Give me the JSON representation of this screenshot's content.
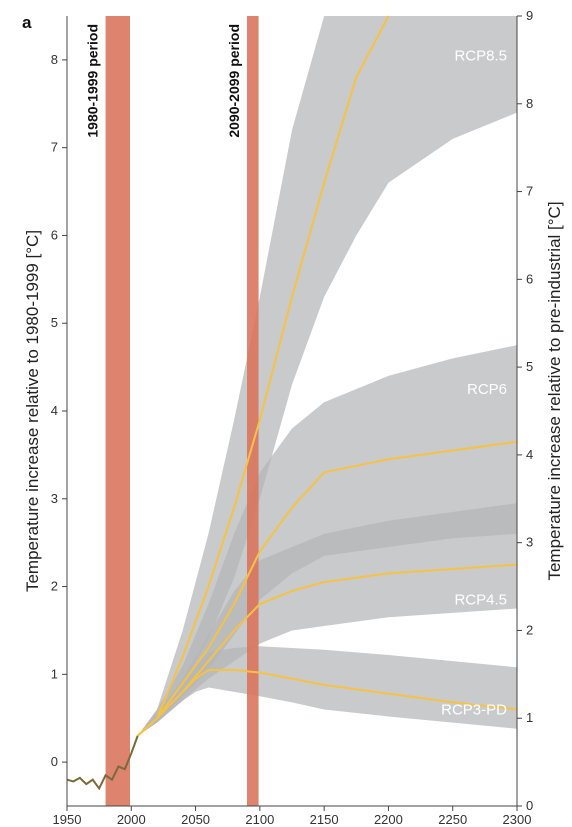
{
  "chart_data": {
    "type": "area",
    "panel_label": "a",
    "ylabel_left": "Temperature increase relative to 1980-1999 [°C]",
    "ylabel_right": "Temperature increase relative to pre-industrial [°C]",
    "xlim": [
      1950,
      2300
    ],
    "ylim_left": [
      -0.5,
      8.5
    ],
    "ylim_right": [
      0,
      9
    ],
    "x_ticks": [
      1950,
      2000,
      2050,
      2100,
      2150,
      2200,
      2250,
      2300
    ],
    "y_ticks_left": [
      0,
      1,
      2,
      3,
      4,
      5,
      6,
      7,
      8
    ],
    "y_ticks_right": [
      0,
      1,
      2,
      3,
      4,
      5,
      6,
      7,
      8,
      9
    ],
    "grid": false,
    "periods": [
      {
        "label": "1980-1999 period",
        "start": 1980,
        "end": 1999
      },
      {
        "label": "2090-2099 period",
        "start": 2090,
        "end": 2099
      }
    ],
    "series": [
      {
        "name": "RCP8.5",
        "line_x": [
          2005,
          2020,
          2040,
          2060,
          2080,
          2100,
          2125,
          2150,
          2175,
          2200
        ],
        "line_y": [
          0.3,
          0.5,
          1.2,
          2.0,
          2.9,
          3.9,
          5.3,
          6.6,
          7.8,
          8.6
        ],
        "band_x": [
          2005,
          2020,
          2040,
          2060,
          2080,
          2100,
          2125,
          2150,
          2175,
          2200,
          2250,
          2300
        ],
        "band_low": [
          0.3,
          0.5,
          0.9,
          1.4,
          2.1,
          3.0,
          4.3,
          5.3,
          6.0,
          6.6,
          7.1,
          7.4
        ],
        "band_high": [
          0.3,
          0.6,
          1.5,
          2.6,
          3.9,
          5.3,
          7.2,
          8.5,
          8.5,
          8.5,
          8.5,
          8.5
        ]
      },
      {
        "name": "RCP6",
        "line_x": [
          2005,
          2020,
          2040,
          2060,
          2080,
          2100,
          2125,
          2150,
          2200,
          2250,
          2300
        ],
        "line_y": [
          0.3,
          0.5,
          0.9,
          1.3,
          1.8,
          2.4,
          2.9,
          3.3,
          3.45,
          3.55,
          3.65
        ],
        "band_x": [
          2005,
          2020,
          2040,
          2060,
          2080,
          2100,
          2125,
          2150,
          2200,
          2250,
          2300
        ],
        "band_low": [
          0.3,
          0.45,
          0.75,
          1.05,
          1.45,
          1.85,
          2.15,
          2.35,
          2.45,
          2.55,
          2.6
        ],
        "band_high": [
          0.3,
          0.6,
          1.1,
          1.8,
          2.6,
          3.3,
          3.8,
          4.1,
          4.4,
          4.6,
          4.75
        ]
      },
      {
        "name": "RCP4.5",
        "line_x": [
          2005,
          2020,
          2040,
          2060,
          2080,
          2100,
          2125,
          2150,
          2200,
          2250,
          2300
        ],
        "line_y": [
          0.3,
          0.5,
          0.8,
          1.15,
          1.5,
          1.8,
          1.95,
          2.05,
          2.15,
          2.2,
          2.25
        ],
        "band_x": [
          2005,
          2020,
          2040,
          2060,
          2080,
          2100,
          2125,
          2150,
          2200,
          2250,
          2300
        ],
        "band_low": [
          0.3,
          0.45,
          0.7,
          0.95,
          1.15,
          1.35,
          1.5,
          1.55,
          1.65,
          1.7,
          1.75
        ],
        "band_high": [
          0.3,
          0.55,
          0.95,
          1.45,
          1.95,
          2.3,
          2.45,
          2.6,
          2.75,
          2.85,
          2.95
        ]
      },
      {
        "name": "RCP3-PD",
        "line_x": [
          2005,
          2020,
          2040,
          2050,
          2060,
          2080,
          2100,
          2125,
          2150,
          2200,
          2250,
          2300
        ],
        "line_y": [
          0.3,
          0.5,
          0.8,
          0.95,
          1.05,
          1.05,
          1.02,
          0.95,
          0.88,
          0.78,
          0.68,
          0.6
        ],
        "band_x": [
          2005,
          2020,
          2040,
          2050,
          2060,
          2080,
          2100,
          2125,
          2150,
          2200,
          2250,
          2300
        ],
        "band_low": [
          0.3,
          0.45,
          0.7,
          0.8,
          0.85,
          0.8,
          0.75,
          0.68,
          0.6,
          0.52,
          0.45,
          0.38
        ],
        "band_high": [
          0.3,
          0.55,
          0.9,
          1.1,
          1.25,
          1.3,
          1.32,
          1.3,
          1.28,
          1.22,
          1.15,
          1.08
        ]
      }
    ],
    "historical": {
      "x": [
        1950,
        1955,
        1960,
        1965,
        1970,
        1975,
        1980,
        1985,
        1990,
        1995,
        2000,
        2005
      ],
      "y": [
        -0.2,
        -0.22,
        -0.18,
        -0.25,
        -0.2,
        -0.3,
        -0.15,
        -0.2,
        -0.05,
        -0.08,
        0.1,
        0.3
      ]
    },
    "colors": {
      "band": "#b4b5b7",
      "band_overlap": "#8c8d90",
      "line": "#f6c244",
      "period": "#d9725a",
      "historical": "#7a6a3a"
    }
  }
}
